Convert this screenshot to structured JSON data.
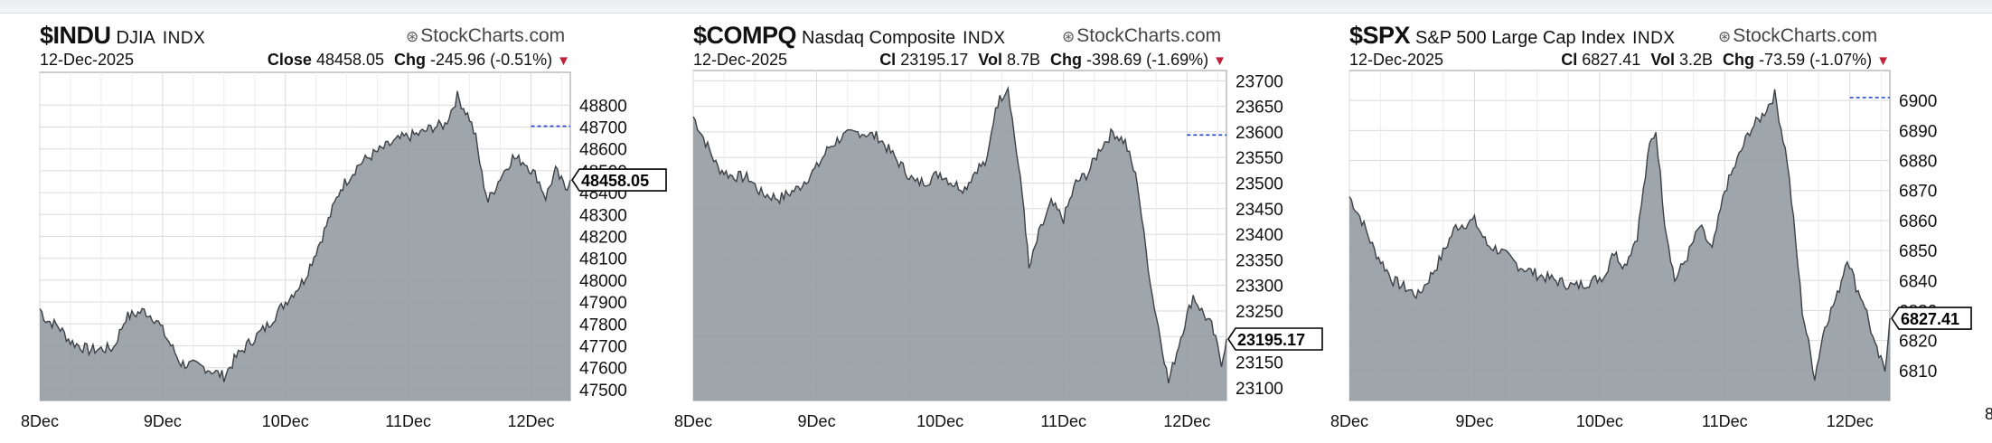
{
  "source": "StockCharts.com",
  "edge_label": "8",
  "panels": [
    {
      "symbol": "$INDU",
      "name": "DJIA",
      "exchange": "INDX",
      "date": "12-Dec-2025",
      "close_label": "Close",
      "close_value": "48458.05",
      "chg_label": "Chg",
      "chg_value": "-245.96 (-0.51%)",
      "last_label": "48458.05"
    },
    {
      "symbol": "$COMPQ",
      "name": "Nasdaq Composite",
      "exchange": "INDX",
      "date": "12-Dec-2025",
      "close_label": "Cl",
      "close_value": "23195.17",
      "vol_label": "Vol",
      "vol_value": "8.7B",
      "chg_label": "Chg",
      "chg_value": "-398.69 (-1.69%)",
      "last_label": "23195.17"
    },
    {
      "symbol": "$SPX",
      "name": "S&P 500 Large Cap Index",
      "exchange": "INDX",
      "date": "12-Dec-2025",
      "close_label": "Cl",
      "close_value": "6827.41",
      "vol_label": "Vol",
      "vol_value": "3.2B",
      "chg_label": "Chg",
      "chg_value": "-73.59 (-1.07%)",
      "last_label": "6827.41"
    }
  ],
  "colors": {
    "area_fill": "#99a0a6",
    "area_line": "#3d4146",
    "grid": "#dadada",
    "prev_close": "#1f3fd6",
    "down": "#c0223b"
  },
  "chart_data": [
    {
      "type": "area",
      "title": "$INDU",
      "ylim": [
        47450,
        48950
      ],
      "yticks": [
        47500,
        47600,
        47700,
        47800,
        47900,
        48000,
        48100,
        48200,
        48300,
        48400,
        48500,
        48600,
        48700,
        48800
      ],
      "x_labels": [
        "8Dec",
        "9Dec",
        "10Dec",
        "11Dec",
        "12Dec"
      ],
      "prev_close": 48704,
      "last": 48458.05,
      "grid": true,
      "keypoints": [
        [
          0,
          47870
        ],
        [
          0.05,
          47820
        ],
        [
          0.15,
          47790
        ],
        [
          0.25,
          47720
        ],
        [
          0.4,
          47680
        ],
        [
          0.6,
          47690
        ],
        [
          0.7,
          47830
        ],
        [
          0.85,
          47860
        ],
        [
          0.95,
          47820
        ],
        [
          1.05,
          47720
        ],
        [
          1.15,
          47620
        ],
        [
          1.35,
          47600
        ],
        [
          1.5,
          47560
        ],
        [
          1.6,
          47650
        ],
        [
          1.7,
          47710
        ],
        [
          1.85,
          47790
        ],
        [
          2.0,
          47900
        ],
        [
          2.15,
          48000
        ],
        [
          2.3,
          48200
        ],
        [
          2.45,
          48420
        ],
        [
          2.6,
          48530
        ],
        [
          2.7,
          48570
        ],
        [
          2.85,
          48620
        ],
        [
          2.95,
          48650
        ],
        [
          3.1,
          48670
        ],
        [
          3.2,
          48700
        ],
        [
          3.3,
          48710
        ],
        [
          3.4,
          48840
        ],
        [
          3.5,
          48740
        ],
        [
          3.55,
          48650
        ],
        [
          3.6,
          48480
        ],
        [
          3.65,
          48360
        ],
        [
          3.75,
          48470
        ],
        [
          3.85,
          48560
        ],
        [
          3.95,
          48540
        ],
        [
          4.05,
          48470
        ],
        [
          4.12,
          48380
        ],
        [
          4.2,
          48500
        ],
        [
          4.28,
          48420
        ],
        [
          4.32,
          48458.05
        ]
      ]
    },
    {
      "type": "area",
      "title": "$COMPQ",
      "ylim": [
        23075,
        23720
      ],
      "yticks": [
        23100,
        23150,
        23200,
        23250,
        23300,
        23350,
        23400,
        23450,
        23500,
        23550,
        23600,
        23650,
        23700
      ],
      "x_labels": [
        "8Dec",
        "9Dec",
        "10Dec",
        "11Dec",
        "12Dec"
      ],
      "prev_close": 23594,
      "last": 23195.17,
      "grid": true,
      "keypoints": [
        [
          0,
          23630
        ],
        [
          0.1,
          23580
        ],
        [
          0.2,
          23530
        ],
        [
          0.3,
          23515
        ],
        [
          0.45,
          23510
        ],
        [
          0.55,
          23480
        ],
        [
          0.7,
          23470
        ],
        [
          0.85,
          23490
        ],
        [
          1.0,
          23530
        ],
        [
          1.1,
          23570
        ],
        [
          1.2,
          23590
        ],
        [
          1.35,
          23600
        ],
        [
          1.5,
          23590
        ],
        [
          1.6,
          23560
        ],
        [
          1.7,
          23530
        ],
        [
          1.8,
          23500
        ],
        [
          1.9,
          23505
        ],
        [
          2.0,
          23520
        ],
        [
          2.1,
          23500
        ],
        [
          2.2,
          23490
        ],
        [
          2.3,
          23530
        ],
        [
          2.38,
          23540
        ],
        [
          2.45,
          23650
        ],
        [
          2.55,
          23690
        ],
        [
          2.62,
          23560
        ],
        [
          2.68,
          23450
        ],
        [
          2.72,
          23330
        ],
        [
          2.8,
          23400
        ],
        [
          2.9,
          23460
        ],
        [
          3.0,
          23430
        ],
        [
          3.1,
          23500
        ],
        [
          3.2,
          23520
        ],
        [
          3.3,
          23570
        ],
        [
          3.4,
          23600
        ],
        [
          3.5,
          23580
        ],
        [
          3.6,
          23500
        ],
        [
          3.65,
          23400
        ],
        [
          3.72,
          23280
        ],
        [
          3.8,
          23180
        ],
        [
          3.85,
          23110
        ],
        [
          3.95,
          23200
        ],
        [
          4.05,
          23280
        ],
        [
          4.12,
          23250
        ],
        [
          4.2,
          23220
        ],
        [
          4.28,
          23150
        ],
        [
          4.32,
          23195.17
        ]
      ]
    },
    {
      "type": "area",
      "title": "$SPX",
      "ylim": [
        6800,
        6910
      ],
      "yticks": [
        6810,
        6820,
        6830,
        6840,
        6850,
        6860,
        6870,
        6880,
        6890,
        6900
      ],
      "x_labels": [
        "8Dec",
        "9Dec",
        "10Dec",
        "11Dec",
        "12Dec"
      ],
      "prev_close": 6901,
      "last": 6827.41,
      "grid": true,
      "keypoints": [
        [
          0,
          6868
        ],
        [
          0.1,
          6860
        ],
        [
          0.2,
          6850
        ],
        [
          0.35,
          6840
        ],
        [
          0.55,
          6835
        ],
        [
          0.7,
          6845
        ],
        [
          0.85,
          6858
        ],
        [
          1.0,
          6860
        ],
        [
          1.1,
          6852
        ],
        [
          1.2,
          6850
        ],
        [
          1.35,
          6845
        ],
        [
          1.5,
          6842
        ],
        [
          1.65,
          6840
        ],
        [
          1.8,
          6838
        ],
        [
          1.95,
          6840
        ],
        [
          2.05,
          6842
        ],
        [
          2.1,
          6850
        ],
        [
          2.2,
          6845
        ],
        [
          2.3,
          6855
        ],
        [
          2.4,
          6885
        ],
        [
          2.45,
          6890
        ],
        [
          2.52,
          6860
        ],
        [
          2.6,
          6840
        ],
        [
          2.7,
          6848
        ],
        [
          2.8,
          6858
        ],
        [
          2.9,
          6850
        ],
        [
          3.0,
          6870
        ],
        [
          3.1,
          6880
        ],
        [
          3.2,
          6890
        ],
        [
          3.3,
          6895
        ],
        [
          3.4,
          6902
        ],
        [
          3.5,
          6880
        ],
        [
          3.55,
          6860
        ],
        [
          3.62,
          6830
        ],
        [
          3.72,
          6808
        ],
        [
          3.8,
          6825
        ],
        [
          3.9,
          6835
        ],
        [
          3.98,
          6848
        ],
        [
          4.05,
          6838
        ],
        [
          4.12,
          6832
        ],
        [
          4.2,
          6818
        ],
        [
          4.28,
          6810
        ],
        [
          4.32,
          6827.41
        ]
      ]
    }
  ]
}
